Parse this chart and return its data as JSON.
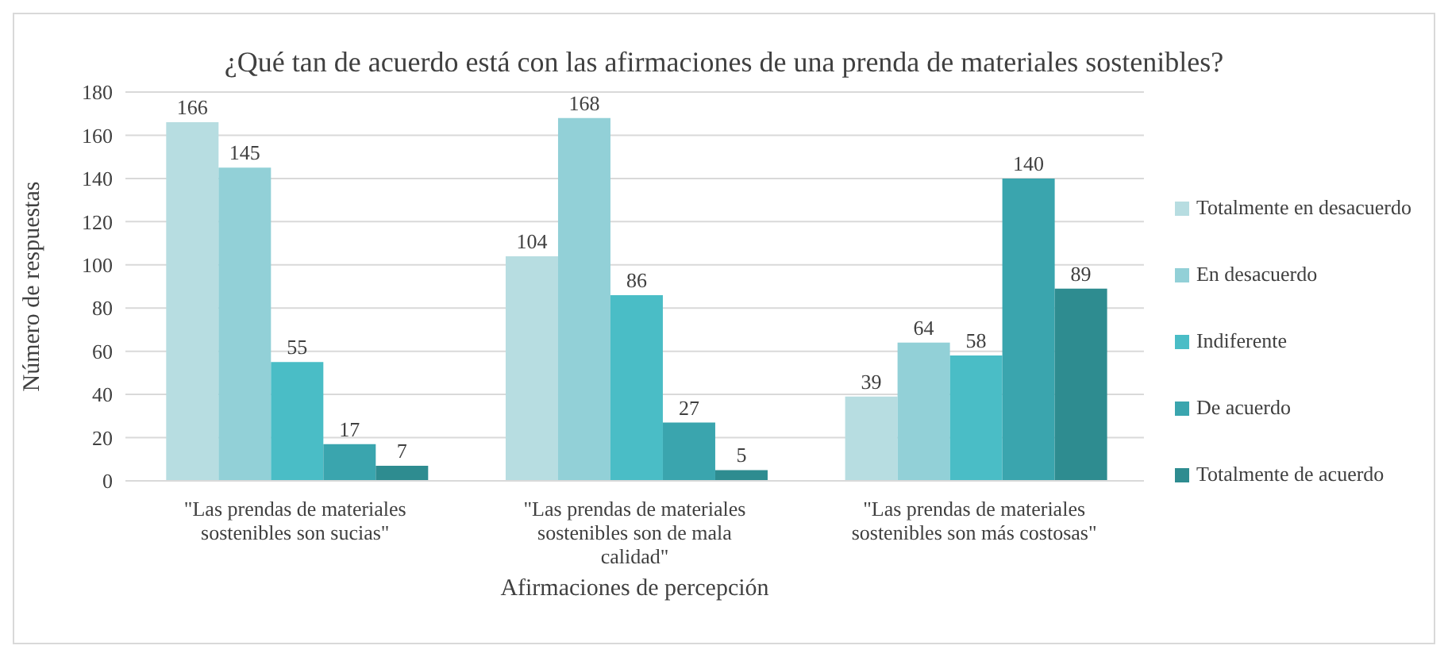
{
  "chart_data": {
    "type": "bar",
    "title": "¿Qué tan de acuerdo está con las afirmaciones de una prenda de materiales sostenibles?",
    "xlabel": "Afirmaciones de percepción",
    "ylabel": "Número de respuestas",
    "categories": [
      "\"Las prendas de materiales sostenibles son sucias\"",
      "\"Las prendas de materiales sostenibles son de mala calidad\"",
      "\"Las prendas de materiales sostenibles son más costosas\""
    ],
    "series": [
      {
        "name": "Totalmente en desacuerdo",
        "color": "#b7dde1",
        "values": [
          166,
          104,
          39
        ]
      },
      {
        "name": "En desacuerdo",
        "color": "#92d0d7",
        "values": [
          145,
          168,
          64
        ]
      },
      {
        "name": "Indiferente",
        "color": "#4abdc6",
        "values": [
          55,
          86,
          58
        ]
      },
      {
        "name": "De acuerdo",
        "color": "#3aa5ae",
        "values": [
          17,
          27,
          140
        ]
      },
      {
        "name": "Totalmente de acuerdo",
        "color": "#2e8c90",
        "values": [
          7,
          5,
          89
        ]
      }
    ],
    "ylim": [
      0,
      180
    ],
    "yticks": [
      0,
      20,
      40,
      60,
      80,
      100,
      120,
      140,
      160,
      180
    ],
    "grid": "y",
    "legend": "right",
    "data_labels": true
  }
}
